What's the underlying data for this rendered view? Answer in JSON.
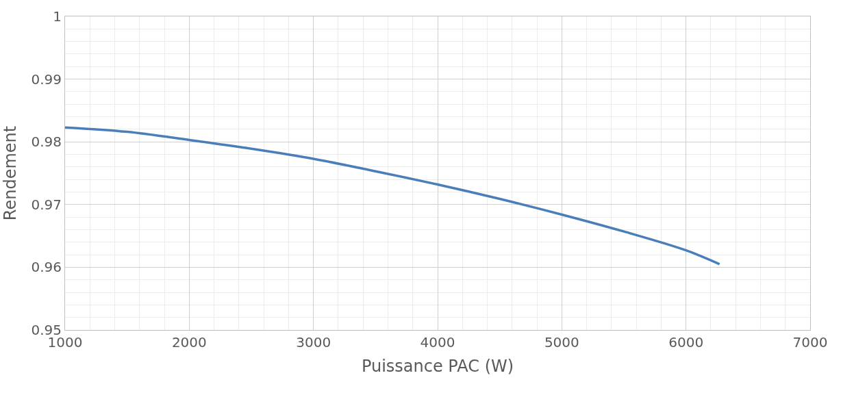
{
  "chart_data": {
    "type": "line",
    "xlabel": "Puissance PAC (W)",
    "ylabel": "Rendement",
    "x": [
      1000,
      1500,
      2000,
      2500,
      3000,
      3500,
      4000,
      4500,
      5000,
      5500,
      6000,
      6270
    ],
    "series": [
      {
        "color": "#4a7ebb",
        "values": [
          0.9823,
          0.9816,
          0.9803,
          0.9789,
          0.9773,
          0.9753,
          0.9732,
          0.9709,
          0.9684,
          0.9657,
          0.9627,
          0.9605
        ]
      }
    ],
    "xlim": [
      1000,
      7000
    ],
    "xticks": [
      1000,
      2000,
      3000,
      4000,
      5000,
      6000,
      7000
    ],
    "ylim": [
      0.95,
      1
    ],
    "yticks": [
      0.95,
      0.96,
      0.97,
      0.98,
      0.99,
      {
        "value": 1,
        "label": "1"
      }
    ],
    "grid": true,
    "marker": "none",
    "line_style": "solid"
  }
}
